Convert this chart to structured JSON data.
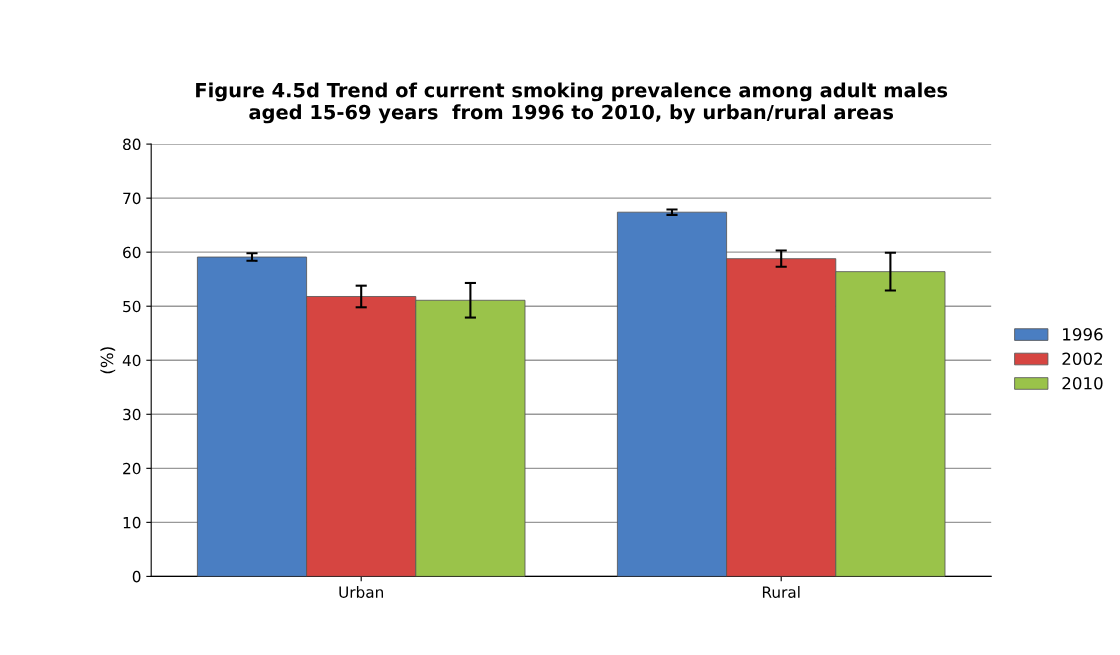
{
  "chart_data": {
    "type": "bar",
    "title": "Figure 4.5d Trend of current smoking prevalence among adult males\naged 15-69 years  from 1996 to 2010, by urban/rural areas",
    "ylabel": "(%)",
    "categories": [
      "Urban",
      "Rural"
    ],
    "series": [
      {
        "name": "1996",
        "color": "#4a7ec2",
        "values": [
          59.1,
          67.4
        ],
        "errors": [
          0.7,
          0.5
        ]
      },
      {
        "name": "2002",
        "color": "#d64541",
        "values": [
          51.8,
          58.8
        ],
        "errors": [
          2.0,
          1.5
        ]
      },
      {
        "name": "2010",
        "color": "#9ac34a",
        "values": [
          51.1,
          56.4
        ],
        "errors": [
          3.2,
          3.5
        ]
      }
    ],
    "ylim": [
      0,
      80
    ],
    "yticks": [
      0,
      10,
      20,
      30,
      40,
      50,
      60,
      70,
      80
    ],
    "grid": "y",
    "legend": "right"
  }
}
